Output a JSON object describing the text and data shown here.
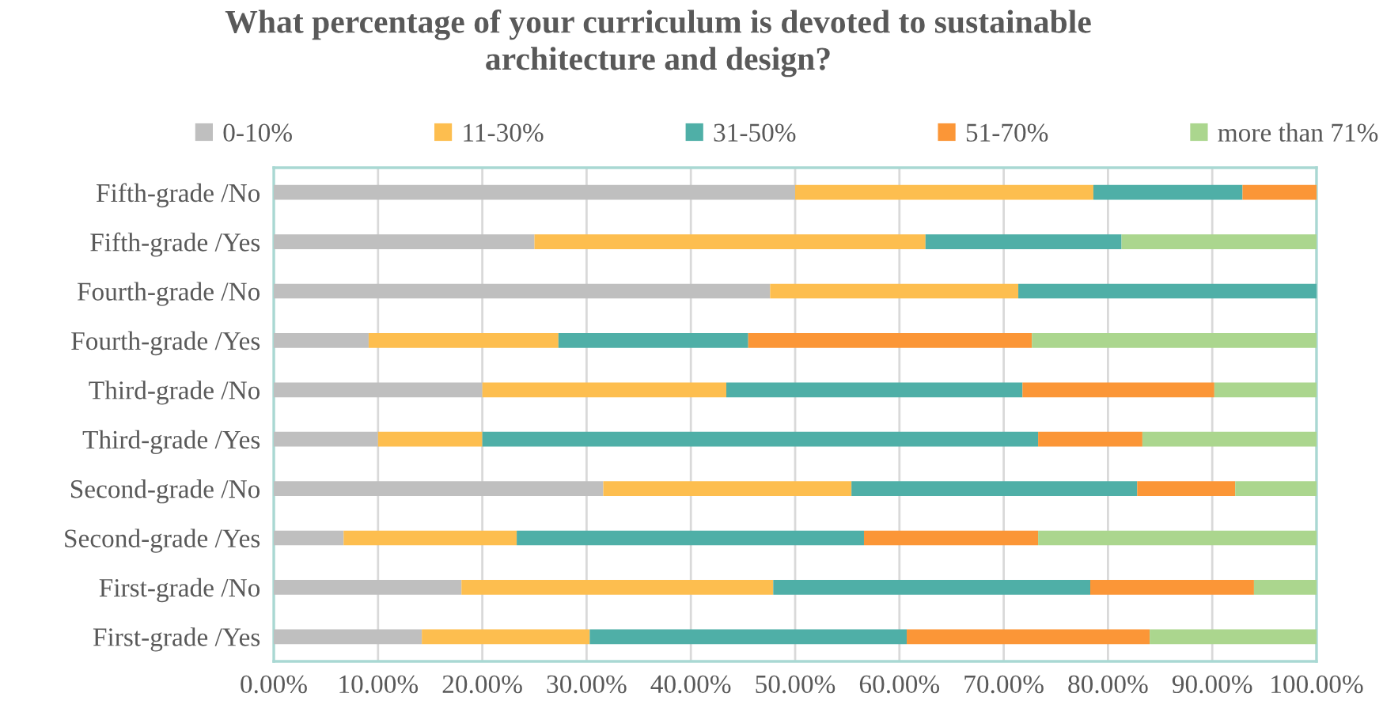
{
  "chart_data": {
    "type": "bar",
    "orientation": "horizontal",
    "stacked": true,
    "title": "What percentage of your curriculum is devoted to sustainable\narchitecture and design?",
    "categories": [
      "Fifth-grade /No",
      "Fifth-grade /Yes",
      "Fourth-grade /No",
      "Fourth-grade /Yes",
      "Third-grade /No",
      "Third-grade /Yes",
      "Second-grade /No",
      "Second-grade /Yes",
      "First-grade /No",
      "First-grade /Yes"
    ],
    "series": [
      {
        "name": "0-10%",
        "color": "#bfbfbf",
        "values": [
          50,
          25,
          47.6,
          9.1,
          20,
          10,
          31.6,
          6.7,
          18.0,
          14.2
        ]
      },
      {
        "name": "11-30%",
        "color": "#fdbe4f",
        "values": [
          28.6,
          37.5,
          23.8,
          18.2,
          23.4,
          10,
          23.8,
          16.6,
          29.9,
          16.1
        ]
      },
      {
        "name": "31-50%",
        "color": "#4fafa7",
        "values": [
          14.3,
          18.8,
          28.6,
          18.2,
          28.4,
          53.3,
          27.4,
          33.3,
          30.4,
          30.4
        ]
      },
      {
        "name": "51-70%",
        "color": "#fb9637",
        "values": [
          7.1,
          0,
          0,
          27.2,
          18.4,
          10,
          9.4,
          16.7,
          15.7,
          23.3
        ]
      },
      {
        "name": "more than 71%",
        "color": "#abd68e",
        "values": [
          0,
          18.7,
          0,
          27.3,
          9.8,
          16.7,
          7.8,
          26.7,
          6.0,
          16.0
        ]
      }
    ],
    "xlim": [
      0,
      100
    ],
    "xticks": [
      {
        "value": 0,
        "label": "0.00%"
      },
      {
        "value": 10,
        "label": "10.00%"
      },
      {
        "value": 20,
        "label": "20.00%"
      },
      {
        "value": 30,
        "label": "30.00%"
      },
      {
        "value": 40,
        "label": "40.00%"
      },
      {
        "value": 50,
        "label": "50.00%"
      },
      {
        "value": 60,
        "label": "60.00%"
      },
      {
        "value": 70,
        "label": "70.00%"
      },
      {
        "value": 80,
        "label": "80.00%"
      },
      {
        "value": 90,
        "label": "90.00%"
      },
      {
        "value": 100,
        "label": "100.00%"
      }
    ],
    "grid": "x",
    "legend": "top"
  }
}
